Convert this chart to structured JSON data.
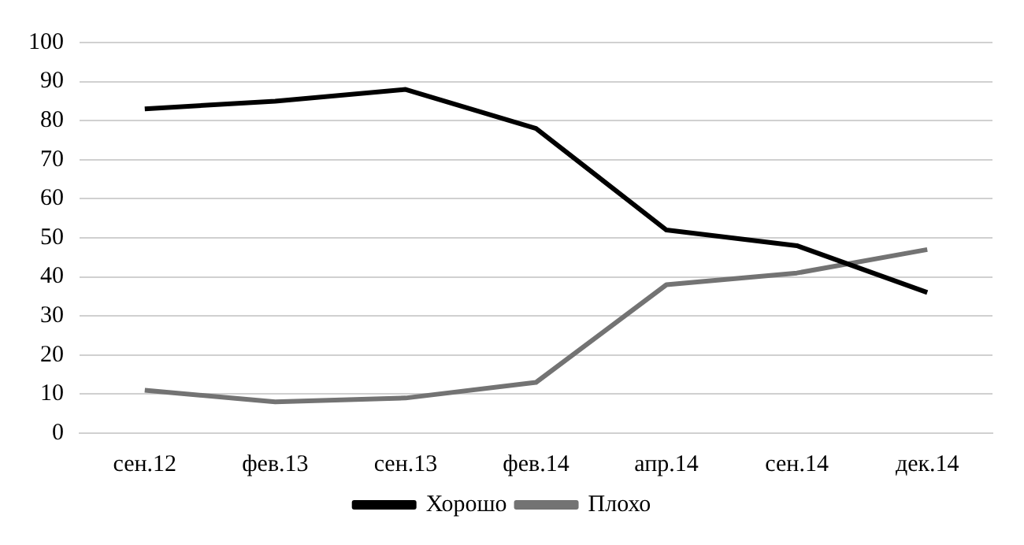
{
  "chart_data": {
    "type": "line",
    "categories": [
      "сен.12",
      "фев.13",
      "сен.13",
      "фев.14",
      "апр.14",
      "сен.14",
      "дек.14"
    ],
    "series": [
      {
        "name": "Хорошо",
        "color": "#000000",
        "values": [
          83,
          85,
          88,
          78,
          52,
          48,
          36
        ]
      },
      {
        "name": "Плохо",
        "color": "#737373",
        "values": [
          11,
          8,
          9,
          13,
          38,
          41,
          47
        ]
      }
    ],
    "ylim": [
      0,
      100
    ],
    "yticks": [
      0,
      10,
      20,
      30,
      40,
      50,
      60,
      70,
      80,
      90,
      100
    ],
    "grid": "y",
    "legend": "bottom",
    "marker": "none",
    "line_style": "solid"
  }
}
